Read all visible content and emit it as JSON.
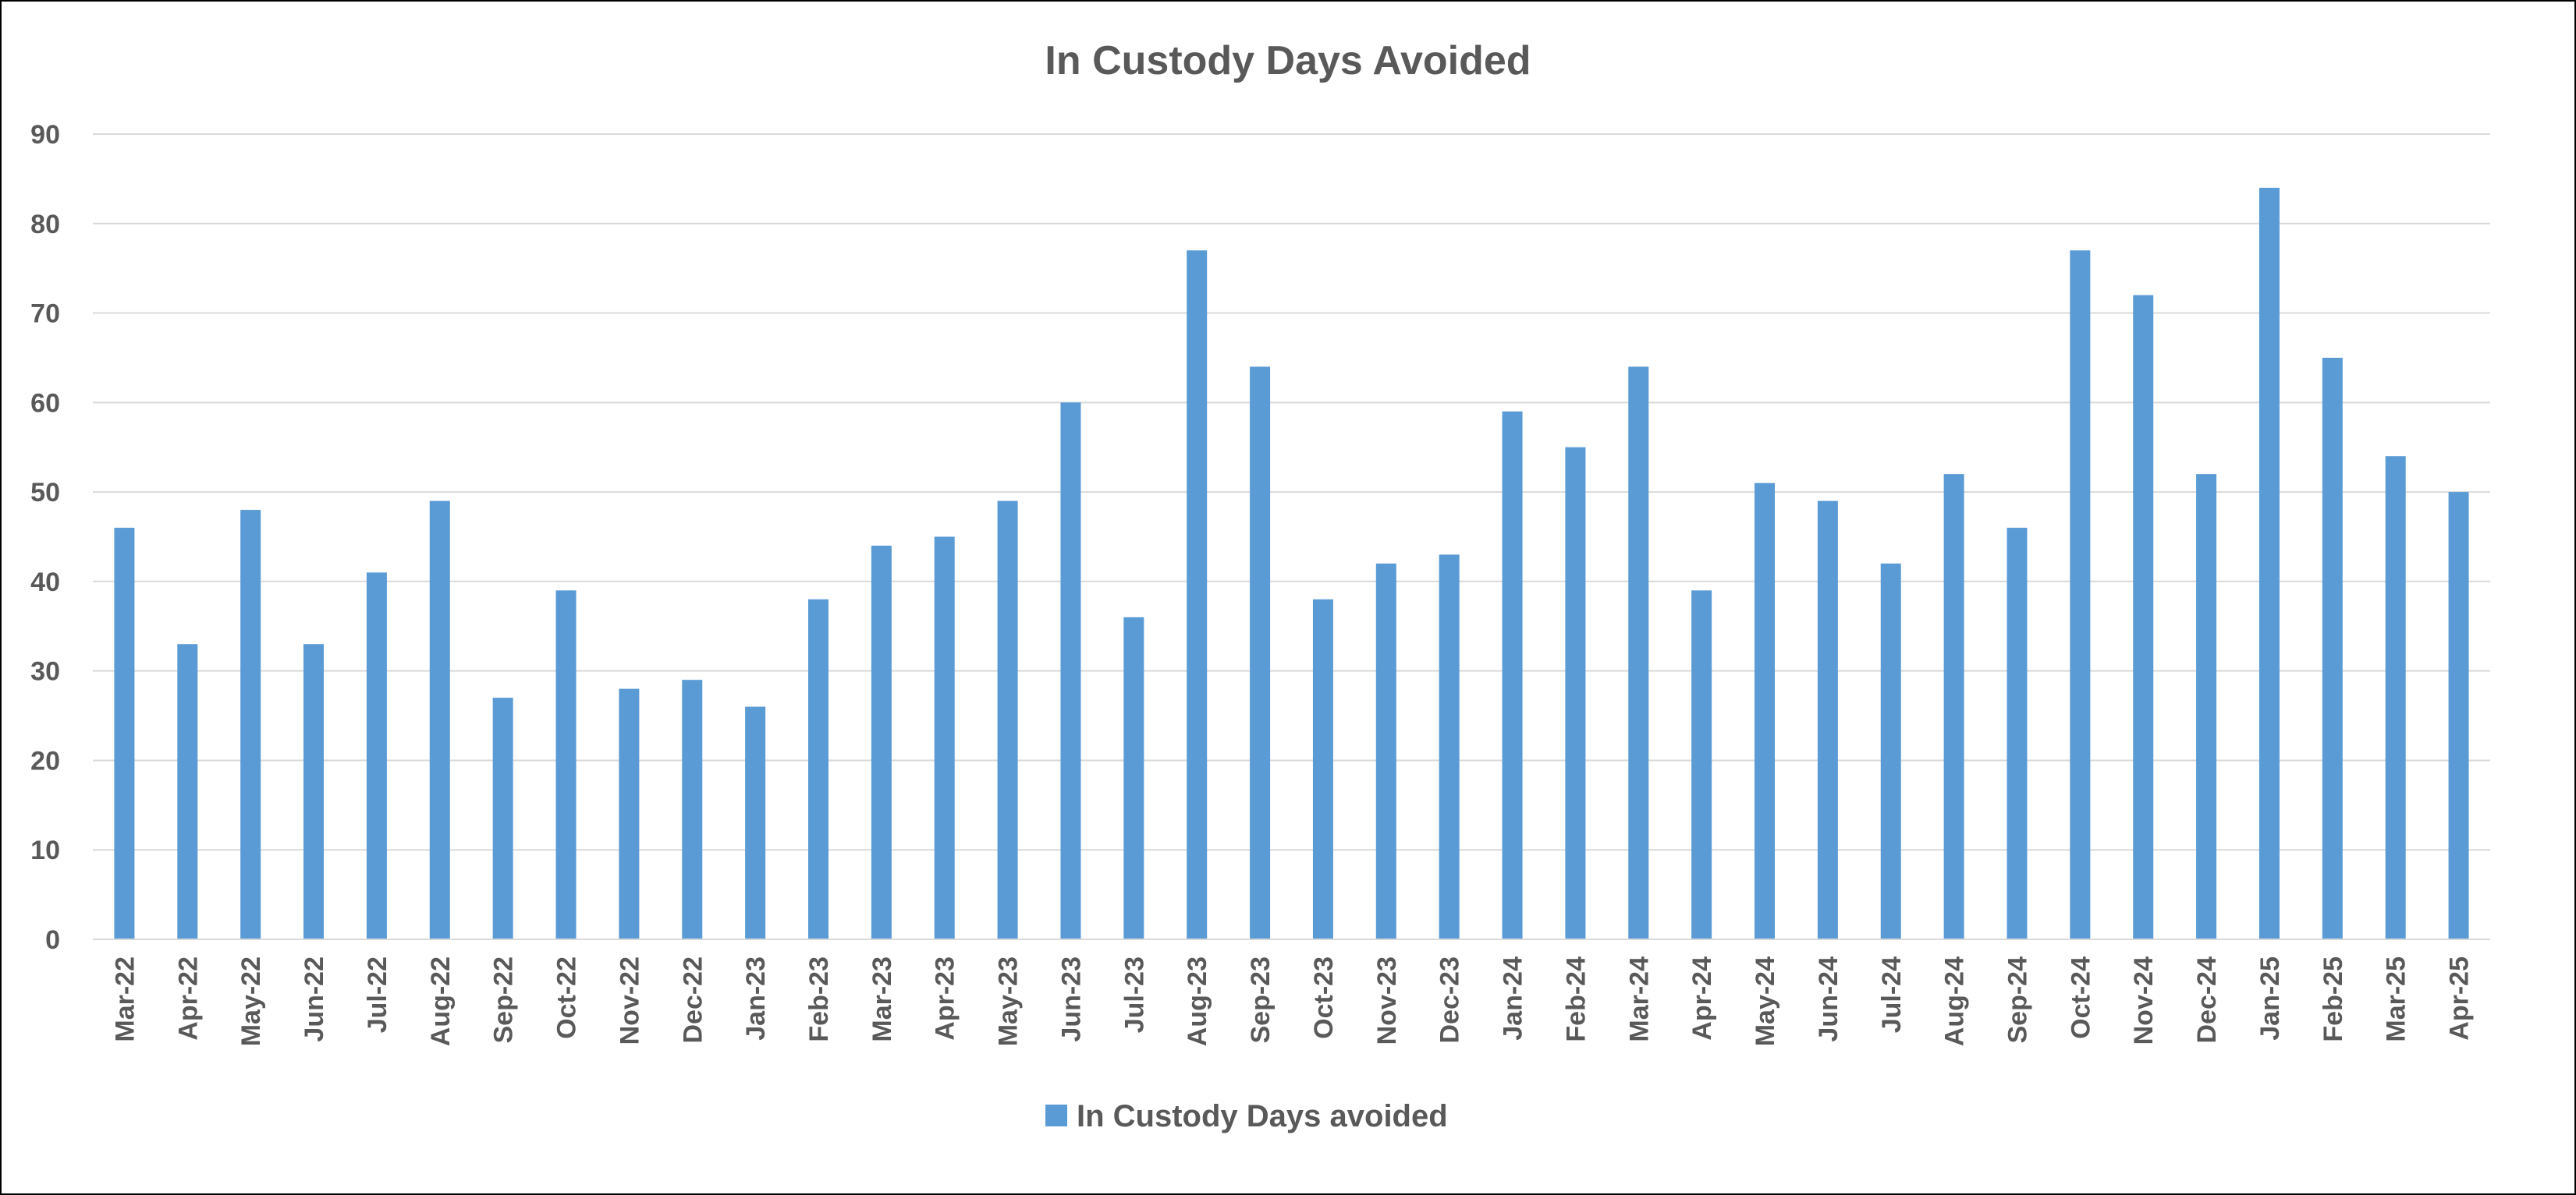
{
  "chart_data": {
    "type": "bar",
    "title": "In Custody Days Avoided",
    "xlabel": "",
    "ylabel": "",
    "ylim": [
      0,
      90
    ],
    "yticks": [
      "0",
      "10",
      "20",
      "30",
      "40",
      "50",
      "60",
      "70",
      "80",
      "90"
    ],
    "grid": true,
    "legend_position": "bottom",
    "categories": [
      "Mar-22",
      "Apr-22",
      "May-22",
      "Jun-22",
      "Jul-22",
      "Aug-22",
      "Sep-22",
      "Oct-22",
      "Nov-22",
      "Dec-22",
      "Jan-23",
      "Feb-23",
      "Mar-23",
      "Apr-23",
      "May-23",
      "Jun-23",
      "Jul-23",
      "Aug-23",
      "Sep-23",
      "Oct-23",
      "Nov-23",
      "Dec-23",
      "Jan-24",
      "Feb-24",
      "Mar-24",
      "Apr-24",
      "May-24",
      "Jun-24",
      "Jul-24",
      "Aug-24",
      "Sep-24",
      "Oct-24",
      "Nov-24",
      "Dec-24",
      "Jan-25",
      "Feb-25",
      "Mar-25",
      "Apr-25"
    ],
    "series": [
      {
        "name": "In Custody Days avoided",
        "color": "#5B9BD5",
        "values": [
          46,
          33,
          48,
          33,
          41,
          49,
          27,
          39,
          28,
          29,
          26,
          38,
          44,
          45,
          49,
          60,
          36,
          77,
          64,
          38,
          42,
          43,
          59,
          55,
          64,
          39,
          51,
          49,
          42,
          52,
          46,
          77,
          72,
          52,
          84,
          65,
          54,
          50
        ]
      }
    ]
  }
}
